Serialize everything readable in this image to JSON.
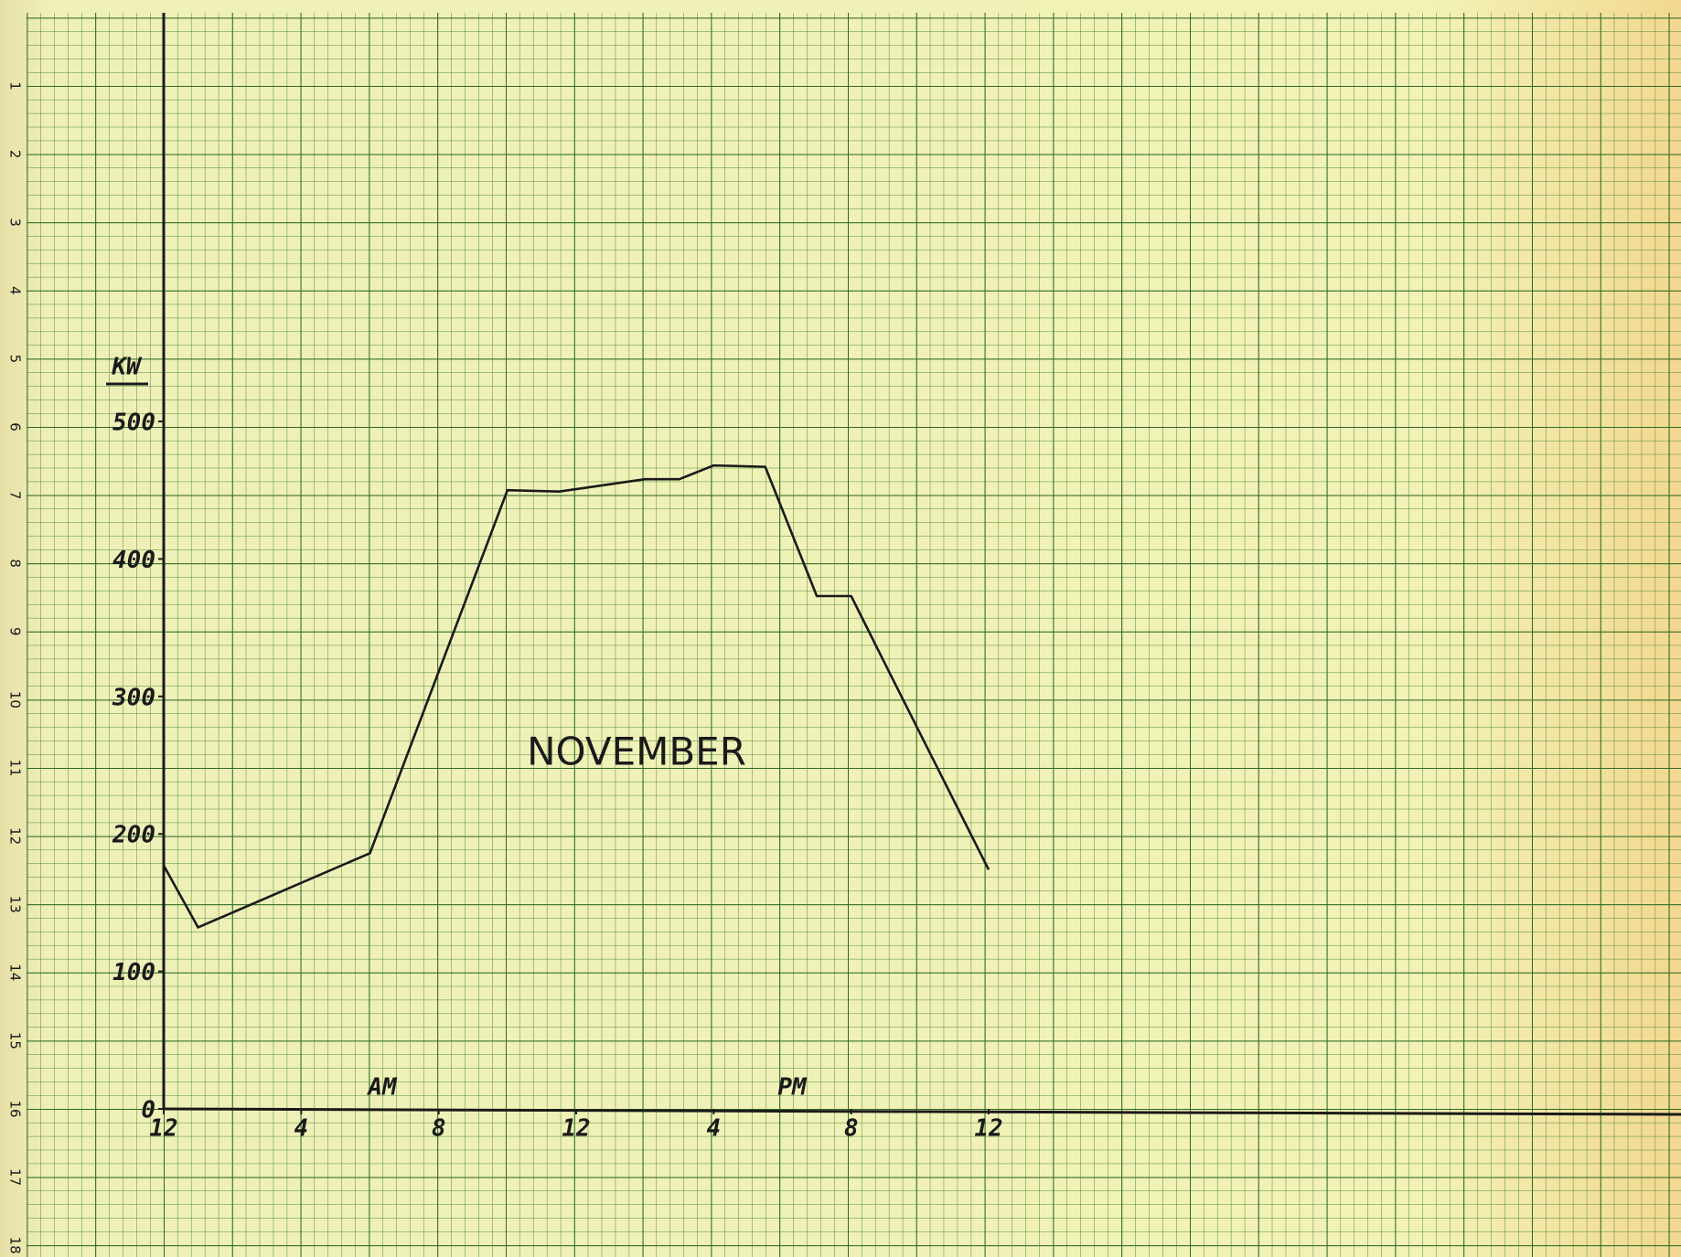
{
  "chart_data": {
    "type": "line",
    "y_label": "KW",
    "annotations": [
      "NOVEMBER",
      "AM",
      "PM"
    ],
    "x": [
      0,
      1,
      6,
      10,
      11.5,
      14,
      15,
      16,
      17.5,
      19,
      20,
      21,
      24
    ],
    "values": [
      177,
      132,
      186,
      450,
      449,
      458,
      458,
      468,
      467,
      373,
      373,
      323,
      174
    ],
    "color": "#1a1a1a",
    "xlim": [
      0,
      24
    ],
    "xticks": [
      {
        "value": 0,
        "label": "12"
      },
      {
        "value": 4,
        "label": "4"
      },
      {
        "value": 8,
        "label": "8"
      },
      {
        "value": 12,
        "label": "12"
      },
      {
        "value": 16,
        "label": "4"
      },
      {
        "value": 20,
        "label": "8"
      },
      {
        "value": 24,
        "label": "12"
      }
    ],
    "ylim": [
      0,
      500
    ],
    "yticks": [
      0,
      100,
      200,
      300,
      400,
      500
    ],
    "paper_margin_labels": [
      1,
      2,
      3,
      4,
      5,
      6,
      7,
      8,
      9,
      10,
      11,
      12,
      13,
      14,
      15,
      16,
      17,
      18
    ],
    "grid": true
  }
}
